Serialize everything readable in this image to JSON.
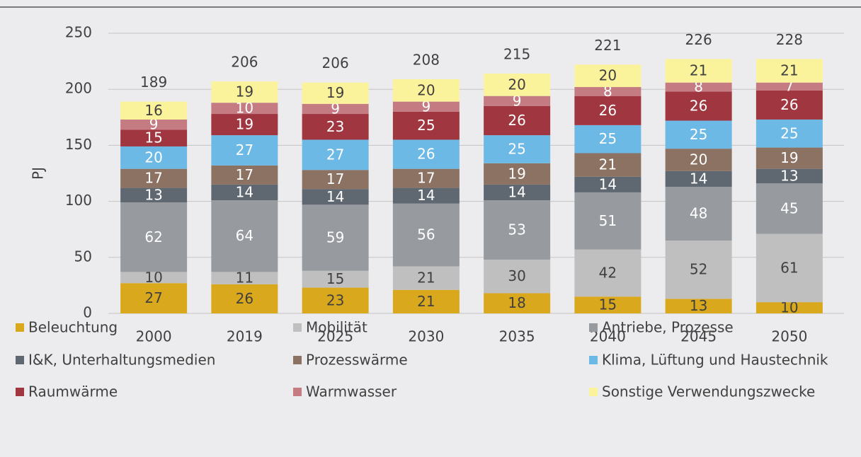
{
  "chart_data": {
    "type": "stacked_bar",
    "y_label": "PJ",
    "categories": [
      "2000",
      "2019",
      "2025",
      "2030",
      "2035",
      "2040",
      "2045",
      "2050"
    ],
    "series": [
      {
        "name": "Beleuchtung",
        "color": "#d9a81c",
        "values": [
          27,
          26,
          23,
          21,
          18,
          15,
          13,
          10
        ]
      },
      {
        "name": "Mobilität",
        "color": "#bfbfc0",
        "values": [
          10,
          11,
          15,
          21,
          30,
          42,
          52,
          61
        ]
      },
      {
        "name": "Antriebe, Prozesse",
        "color": "#979a9f",
        "values": [
          62,
          64,
          59,
          56,
          53,
          51,
          48,
          45
        ]
      },
      {
        "name": "I&K, Unterhaltungsmedien",
        "color": "#5f6771",
        "values": [
          13,
          14,
          14,
          14,
          14,
          14,
          14,
          13
        ]
      },
      {
        "name": "Prozesswärme",
        "color": "#8b7263",
        "values": [
          17,
          17,
          17,
          17,
          19,
          21,
          20,
          19
        ]
      },
      {
        "name": "Klima, Lüftung und Haustechnik",
        "color": "#6cb9e6",
        "values": [
          20,
          27,
          27,
          26,
          25,
          25,
          25,
          25
        ]
      },
      {
        "name": "Raumwärme",
        "color": "#a0363f",
        "values": [
          15,
          19,
          23,
          25,
          26,
          26,
          26,
          26
        ]
      },
      {
        "name": "Warmwasser",
        "color": "#c47c82",
        "values": [
          9,
          10,
          9,
          9,
          9,
          8,
          8,
          7
        ]
      },
      {
        "name": "Sonstige Verwendungszwecke",
        "color": "#fbf39b",
        "values": [
          16,
          19,
          19,
          20,
          20,
          20,
          21,
          21
        ]
      }
    ],
    "totals": [
      189,
      206,
      206,
      208,
      215,
      221,
      226,
      228
    ],
    "ylim": [
      0,
      250
    ],
    "yticks": [
      0,
      50,
      100,
      150,
      200,
      250
    ],
    "grid": true
  }
}
